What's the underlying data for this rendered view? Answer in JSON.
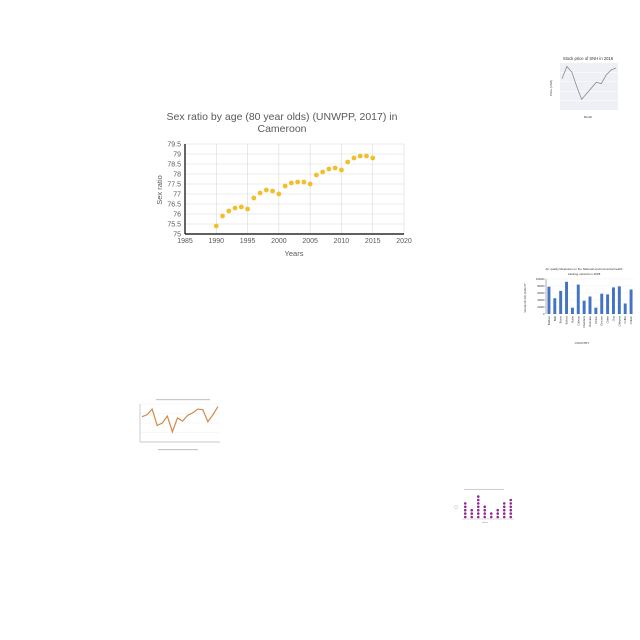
{
  "colors": {
    "main_marker": "#f1bf2b",
    "grid": "#d9d9d9",
    "axis": "#000000",
    "text": "#595959",
    "thumb_line_gray": "#8a8a8a",
    "thumb_bar_blue": "#4472c4",
    "thumb_line_orange": "#d08a4a",
    "thumb_dot_purple": "#8e2c8e"
  },
  "chart_data": [
    {
      "id": "main",
      "type": "scatter",
      "title_lines": [
        "Sex ratio by age (80 year olds) (UNWPP, 2017) in",
        "Cameroon"
      ],
      "xlabel": "Years",
      "ylabel": "Sex ratio",
      "xlim": [
        1985,
        2020
      ],
      "ylim": [
        75,
        79.5
      ],
      "x_ticks": [
        "1985",
        "1990",
        "1995",
        "2000",
        "2005",
        "2010",
        "2015",
        "2020"
      ],
      "y_ticks": [
        "75",
        "75.5",
        "76",
        "76.5",
        "77",
        "77.5",
        "78",
        "78.5",
        "79",
        "79.5"
      ],
      "grid": true,
      "x": [
        1990,
        1991,
        1992,
        1993,
        1994,
        1995,
        1996,
        1997,
        1998,
        1999,
        2000,
        2001,
        2002,
        2003,
        2004,
        2005,
        2006,
        2007,
        2008,
        2009,
        2010,
        2011,
        2012,
        2013,
        2014,
        2015
      ],
      "y": [
        75.4,
        75.9,
        76.15,
        76.3,
        76.35,
        76.25,
        76.8,
        77.05,
        77.2,
        77.15,
        77.0,
        77.4,
        77.55,
        77.6,
        77.6,
        77.5,
        77.95,
        78.1,
        78.25,
        78.3,
        78.2,
        78.6,
        78.8,
        78.9,
        78.9,
        78.8
      ]
    },
    {
      "id": "thumb-stock",
      "type": "line",
      "title": "Stock price of SNH in 2016",
      "xlabel": "Month",
      "ylabel": "Price (USD)",
      "values": [
        4.1,
        5.8,
        5.0,
        3.0,
        1.2,
        2.0,
        2.8,
        3.6,
        3.4,
        4.6,
        5.3,
        5.6
      ]
    },
    {
      "id": "thumb-air",
      "type": "bar",
      "title_lines": [
        "Air quality Measures on the National environmental health",
        "tracking network in 2008"
      ],
      "xlabel": "COUNTRY",
      "ylabel": "VALUE OF AIR QUALITY",
      "y_ticks": [
        "0",
        "20000",
        "40000",
        "60000",
        "80000",
        "100000"
      ],
      "ylim": [
        0,
        100000
      ],
      "categories": [
        "Barbour",
        "Bibb",
        "Blount",
        "Bullock",
        "Butler",
        "Calhoun",
        "Chambers",
        "Cherokee",
        "Chilton",
        "Choctaw",
        "Clarke",
        "Clay",
        "Cleburne",
        "Coffee",
        "Colbert"
      ],
      "values": [
        78000,
        45000,
        66000,
        92000,
        18000,
        84000,
        38000,
        50000,
        18000,
        58000,
        56000,
        76000,
        79000,
        30000,
        70000
      ]
    },
    {
      "id": "thumb-orange",
      "type": "line",
      "values": [
        6.0,
        6.3,
        7.2,
        4.6,
        5.0,
        6.1,
        3.6,
        5.8,
        5.3,
        6.2,
        6.6,
        7.2,
        7.1,
        5.2,
        6.3,
        7.6
      ]
    },
    {
      "id": "thumb-purple",
      "type": "scatter",
      "values": [
        5,
        3,
        7,
        4,
        2,
        3,
        5,
        6
      ]
    }
  ]
}
